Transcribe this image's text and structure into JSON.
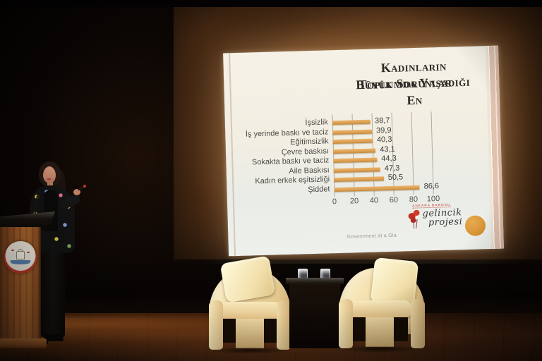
{
  "slide": {
    "title_line1": "Kadınların Toplumda Yaşadığı En",
    "title_line2": "Büyük Sorunlar",
    "footer_caption": "Government at a Gla",
    "logo": {
      "org_text": "ANKARA BAROSU",
      "script_line1": "gelincik",
      "script_line2": "projesi"
    }
  },
  "chart_data": {
    "type": "bar",
    "orientation": "horizontal",
    "title": "Kadınların Toplumda Yaşadığı En Büyük Sorunlar",
    "categories": [
      "İşsizlik",
      "İş yerinde baskı ve taciz",
      "Eğitimsizlik",
      "Çevre baskısı",
      "Sokakta baskı ve taciz",
      "Aile Baskısı",
      "Kadın erkek eşitsizliği",
      "Şiddet"
    ],
    "values": [
      38.7,
      39.9,
      40.3,
      43.1,
      44.3,
      47.3,
      50.5,
      86.6
    ],
    "value_labels": [
      "38,7",
      "39,9",
      "40,3",
      "43,1",
      "44,3",
      "47,3",
      "50,5",
      "86,6"
    ],
    "x_ticks": [
      "0",
      "20",
      "40",
      "60",
      "80",
      "100"
    ],
    "xlim": [
      0,
      100
    ],
    "grid": true,
    "legend_position": "none",
    "bar_color": "#dda155"
  },
  "podium": {
    "emblem_text": "MALTEPE BELEDİYESİ"
  },
  "colors": {
    "slide_bg": "#f2eee3",
    "bar": "#dda155",
    "accent_circle": "#d89334",
    "poppy_red": "#c23a2e",
    "screen_brown": "#6e4524",
    "chair_cream": "#f2e2b5",
    "wood_podium": "#a05a28"
  }
}
